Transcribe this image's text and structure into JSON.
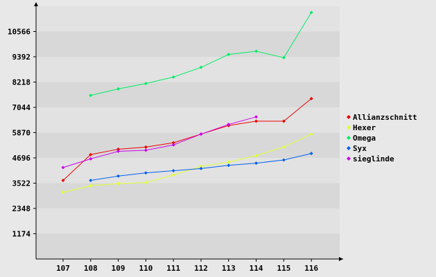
{
  "chart_data": {
    "type": "line",
    "title": "",
    "xlabel": "",
    "ylabel": "",
    "x": [
      107,
      108,
      109,
      110,
      111,
      112,
      113,
      114,
      115,
      116
    ],
    "y_ticks": [
      1174,
      2348,
      3522,
      4696,
      5870,
      7044,
      8218,
      9392,
      10566
    ],
    "ylim": [
      0,
      11740
    ],
    "grid": "horizontal bands",
    "legend_position": "right",
    "series": [
      {
        "name": "Allianzschnitt",
        "color": "#ee0000",
        "values": [
          3650,
          4850,
          5100,
          5200,
          5400,
          5800,
          6200,
          6400,
          6400,
          7450
        ]
      },
      {
        "name": "Hexer",
        "color": "#e0ff30",
        "values": [
          3100,
          3400,
          3500,
          3550,
          3900,
          4300,
          4500,
          4800,
          5200,
          5800
        ]
      },
      {
        "name": "Omega",
        "color": "#00ee66",
        "values": [
          null,
          7600,
          7900,
          8150,
          8450,
          8900,
          9500,
          9650,
          9350,
          11450
        ]
      },
      {
        "name": "Syx",
        "color": "#0060ee",
        "values": [
          null,
          3650,
          3850,
          4000,
          4100,
          4200,
          4350,
          4450,
          4600,
          4900
        ]
      },
      {
        "name": "sieglinde",
        "color": "#cc00ee",
        "values": [
          4250,
          4650,
          5000,
          5050,
          5300,
          5800,
          6250,
          6600,
          null,
          null
        ]
      }
    ]
  }
}
